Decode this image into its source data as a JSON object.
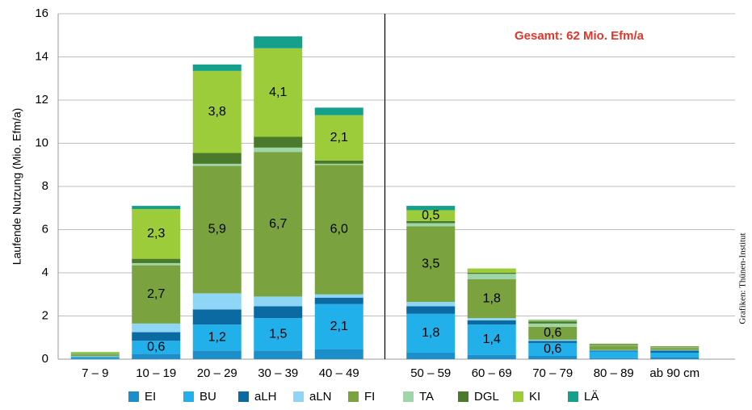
{
  "chart_data": {
    "type": "stacked_bar",
    "y_label": "Laufende Nutzung (Mio. Efm/a)",
    "annotation": "Gesamt: 62 Mio. Efm/a",
    "credit": "Grafiken: Thünen-Institut",
    "categories": [
      "7 – 9",
      "10 – 19",
      "20 – 29",
      "30 – 39",
      "40 – 49",
      "50 – 59",
      "60 – 69",
      "70 – 79",
      "80 – 89",
      "ab 90 cm"
    ],
    "ylim": [
      0,
      16
    ],
    "yticks": [
      0,
      2,
      4,
      6,
      8,
      10,
      12,
      14,
      16
    ],
    "grid": true,
    "series": [
      {
        "name": "EI",
        "color": "#1c8fcb",
        "values": [
          0.05,
          0.25,
          0.4,
          0.4,
          0.45,
          0.3,
          0.2,
          0.15,
          0.05,
          0.1
        ],
        "value_labels": [
          null,
          null,
          null,
          null,
          null,
          null,
          null,
          null,
          null,
          null
        ]
      },
      {
        "name": "BU",
        "color": "#22b0ea",
        "values": [
          0.05,
          0.6,
          1.2,
          1.5,
          2.1,
          1.8,
          1.4,
          0.6,
          0.3,
          0.2
        ],
        "value_labels": [
          null,
          "0,6",
          "1,2",
          "1,5",
          "2,1",
          "1,8",
          "1,4",
          "0,6",
          null,
          null
        ]
      },
      {
        "name": "aLH",
        "color": "#0a6aa1",
        "values": [
          0.02,
          0.4,
          0.7,
          0.55,
          0.3,
          0.35,
          0.2,
          0.1,
          0.05,
          0.1
        ],
        "value_labels": [
          null,
          null,
          null,
          null,
          null,
          null,
          null,
          null,
          null,
          null
        ]
      },
      {
        "name": "aLN",
        "color": "#8fd6f6",
        "values": [
          0.02,
          0.4,
          0.75,
          0.45,
          0.15,
          0.2,
          0.1,
          0.05,
          0.02,
          0.02
        ],
        "value_labels": [
          null,
          null,
          null,
          null,
          null,
          null,
          null,
          null,
          null,
          null
        ]
      },
      {
        "name": "FI",
        "color": "#7aa33f",
        "values": [
          0.08,
          2.7,
          5.9,
          6.7,
          6.0,
          3.5,
          1.8,
          0.6,
          0.2,
          0.1
        ],
        "value_labels": [
          null,
          "2,7",
          "5,9",
          "6,7",
          "6,0",
          "3,5",
          "1,8",
          "0,6",
          null,
          null
        ]
      },
      {
        "name": "TA",
        "color": "#9fd6a8",
        "values": [
          0.02,
          0.1,
          0.1,
          0.2,
          0.05,
          0.15,
          0.25,
          0.15,
          0.03,
          0.03
        ],
        "value_labels": [
          null,
          null,
          null,
          null,
          null,
          null,
          null,
          null,
          null,
          null
        ]
      },
      {
        "name": "DGL",
        "color": "#4c7a2b",
        "values": [
          0.02,
          0.2,
          0.5,
          0.5,
          0.15,
          0.1,
          0.05,
          0.1,
          0.05,
          0.03
        ],
        "value_labels": [
          null,
          null,
          null,
          null,
          null,
          null,
          null,
          null,
          null,
          null
        ]
      },
      {
        "name": "KI",
        "color": "#9ccc3a",
        "values": [
          0.06,
          2.3,
          3.8,
          4.1,
          2.1,
          0.5,
          0.2,
          0.05,
          0.02,
          0.02
        ],
        "value_labels": [
          null,
          "2,3",
          "3,8",
          "4,1",
          "2,1",
          "0,5",
          null,
          null,
          null,
          null
        ]
      },
      {
        "name": "LÄ",
        "color": "#14a08a",
        "values": [
          0.01,
          0.15,
          0.3,
          0.55,
          0.35,
          0.2,
          0,
          0.02,
          0,
          0
        ],
        "value_labels": [
          null,
          null,
          null,
          null,
          null,
          null,
          null,
          null,
          null,
          null
        ]
      }
    ]
  }
}
